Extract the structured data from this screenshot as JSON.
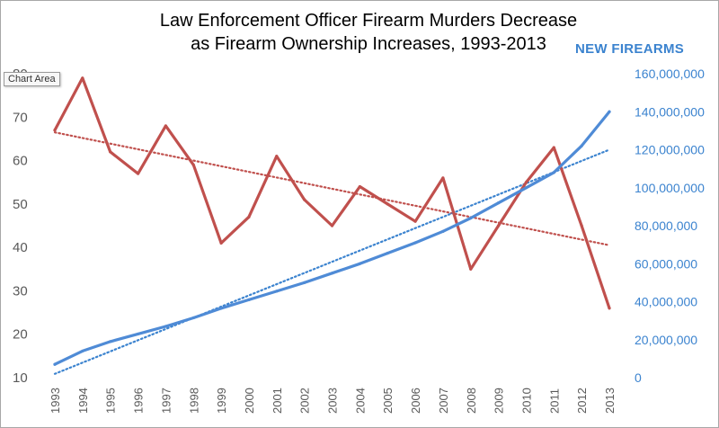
{
  "chart_data": {
    "type": "line",
    "title_line1": "Law Enforcement Officer Firearm Murders Decrease",
    "title_line2": "as Firearm Ownership Increases, 1993-2013",
    "right_axis_label": "NEW FIREARMS",
    "tooltip": "Chart Area",
    "categories": [
      "1993",
      "1994",
      "1995",
      "1996",
      "1997",
      "1998",
      "1999",
      "2000",
      "2001",
      "2002",
      "2003",
      "2004",
      "2005",
      "2006",
      "2007",
      "2008",
      "2009",
      "2010",
      "2011",
      "2012",
      "2013"
    ],
    "y_left_ticks": [
      "10",
      "20",
      "30",
      "40",
      "50",
      "60",
      "70",
      "80"
    ],
    "y_right_ticks": [
      "0",
      "20,000,000",
      "40,000,000",
      "60,000,000",
      "80,000,000",
      "100,000,000",
      "120,000,000",
      "140,000,000",
      "160,000,000"
    ],
    "ylim_left": [
      10,
      80
    ],
    "ylim_right": [
      0,
      160000000
    ],
    "grid": false,
    "series": [
      {
        "axis": "left",
        "color": "#c0504d",
        "values": [
          67,
          79,
          62,
          57,
          68,
          59,
          41,
          47,
          61,
          51,
          45,
          54,
          50,
          46,
          56,
          35,
          45,
          55,
          63,
          45,
          26
        ]
      },
      {
        "axis": "right",
        "color": "#4f8bd6",
        "values": [
          7000000,
          14000000,
          19000000,
          23000000,
          27000000,
          31500000,
          36500000,
          41000000,
          45500000,
          50000000,
          55000000,
          60000000,
          65500000,
          71000000,
          77000000,
          84000000,
          92000000,
          100000000,
          108000000,
          122000000,
          140000000
        ]
      }
    ],
    "trendlines": [
      {
        "axis": "left",
        "color": "#c0504d",
        "start": 66.5,
        "end": 40.5
      },
      {
        "axis": "right",
        "color": "#3b83cf",
        "start": 2000000,
        "end": 120000000
      }
    ]
  }
}
